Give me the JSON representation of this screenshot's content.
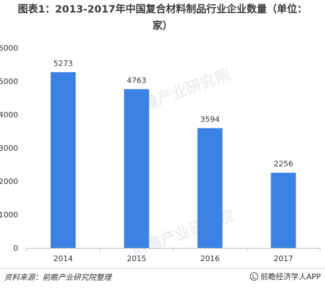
{
  "title": {
    "line1": "图表1：2013-2017年中国复合材料制品行业企业数量（单位：",
    "line2": "家）"
  },
  "chart_data": {
    "type": "bar",
    "title": "图表1：2013-2017年中国复合材料制品行业企业数量（单位：家）",
    "categories": [
      "2014",
      "2015",
      "2016",
      "2017"
    ],
    "values": [
      5273,
      4763,
      3594,
      2256
    ],
    "ylim": [
      0,
      6000
    ],
    "yticks": [
      0,
      1000,
      2000,
      3000,
      4000,
      5000,
      6000
    ],
    "xlabel": "",
    "ylabel": "",
    "grid": false,
    "bar_color": "#3c82e5",
    "data_labels": true
  },
  "footer": {
    "source": "资料来源：前瞻产业研究院整理",
    "brand": "前瞻经济学人APP"
  },
  "watermark": {
    "text": "前瞻产业研究院"
  }
}
